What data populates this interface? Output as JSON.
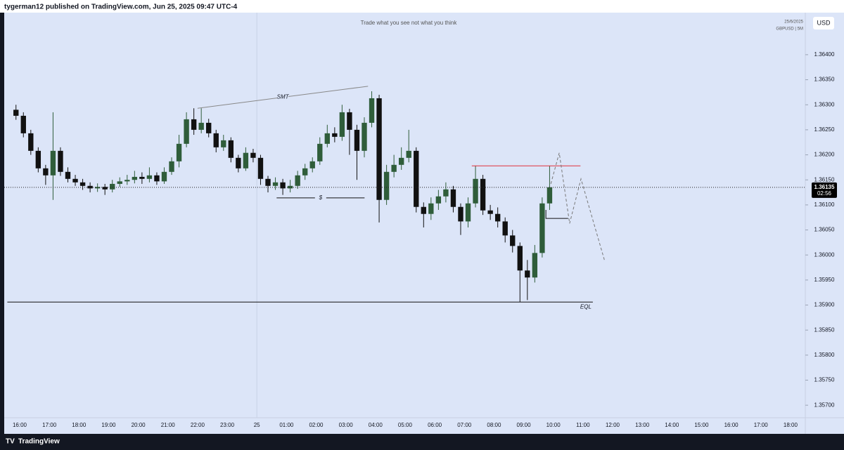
{
  "header": {
    "text": "tygerman12 published on TradingView.com, Jun 25, 2025 09:47 UTC-4"
  },
  "footer": {
    "brand": "TradingView"
  },
  "chart_data": {
    "type": "candlestick",
    "title": "Trade what you see not what you think",
    "date": "25/6/2025",
    "symbol": "GBPUSD | 5M",
    "currency": "USD",
    "up_color": "#2f5d3a",
    "down_color": "#111111",
    "ylim": [
      1.35675,
      1.36484
    ],
    "yticks": [
      {
        "value": 1.364,
        "label": "1.36400"
      },
      {
        "value": 1.3635,
        "label": "1.36350"
      },
      {
        "value": 1.363,
        "label": "1.36300"
      },
      {
        "value": 1.3625,
        "label": "1.36250"
      },
      {
        "value": 1.362,
        "label": "1.36200"
      },
      {
        "value": 1.3615,
        "label": "1.36150"
      },
      {
        "value": 1.361,
        "label": "1.36100"
      },
      {
        "value": 1.3605,
        "label": "1.36050"
      },
      {
        "value": 1.36,
        "label": "1.36000"
      },
      {
        "value": 1.3595,
        "label": "1.35950"
      },
      {
        "value": 1.359,
        "label": "1.35900"
      },
      {
        "value": 1.3585,
        "label": "1.35850"
      },
      {
        "value": 1.358,
        "label": "1.35800"
      },
      {
        "value": 1.3575,
        "label": "1.35750"
      },
      {
        "value": 1.357,
        "label": "1.35700"
      }
    ],
    "xticks": [
      "16:00",
      "17:00",
      "18:00",
      "19:00",
      "20:00",
      "21:00",
      "22:00",
      "23:00",
      {
        "value": "00:00",
        "label": "25"
      },
      "01:00",
      "02:00",
      "03:00",
      "04:00",
      "05:00",
      "06:00",
      "07:00",
      "08:00",
      "09:00",
      "10:00",
      "11:00",
      "12:00",
      "13:00",
      "14:00",
      "15:00",
      "16:00",
      "17:00",
      "18:00"
    ],
    "last_price": 1.36135,
    "countdown": "02:56",
    "candles": [
      {
        "t": "15:45",
        "o": 1.3629,
        "h": 1.363,
        "l": 1.3627,
        "c": 1.36278
      },
      {
        "t": "16:00",
        "o": 1.36278,
        "h": 1.36285,
        "l": 1.36235,
        "c": 1.36243
      },
      {
        "t": "16:15",
        "o": 1.36243,
        "h": 1.3625,
        "l": 1.362,
        "c": 1.36208
      },
      {
        "t": "16:30",
        "o": 1.36208,
        "h": 1.36215,
        "l": 1.36165,
        "c": 1.36173
      },
      {
        "t": "16:45",
        "o": 1.36173,
        "h": 1.3618,
        "l": 1.3614,
        "c": 1.36159
      },
      {
        "t": "17:00",
        "o": 1.36159,
        "h": 1.36285,
        "l": 1.3611,
        "c": 1.36208
      },
      {
        "t": "17:15",
        "o": 1.36208,
        "h": 1.36215,
        "l": 1.36158,
        "c": 1.36166
      },
      {
        "t": "17:30",
        "o": 1.36166,
        "h": 1.36175,
        "l": 1.36145,
        "c": 1.36152
      },
      {
        "t": "17:45",
        "o": 1.36152,
        "h": 1.3616,
        "l": 1.36138,
        "c": 1.36145
      },
      {
        "t": "18:00",
        "o": 1.36145,
        "h": 1.36152,
        "l": 1.3613,
        "c": 1.36138
      },
      {
        "t": "18:15",
        "o": 1.36138,
        "h": 1.36145,
        "l": 1.36125,
        "c": 1.36133
      },
      {
        "t": "18:30",
        "o": 1.36133,
        "h": 1.36143,
        "l": 1.36126,
        "c": 1.36136
      },
      {
        "t": "18:45",
        "o": 1.36136,
        "h": 1.36142,
        "l": 1.3612,
        "c": 1.36131
      },
      {
        "t": "19:00",
        "o": 1.36131,
        "h": 1.3615,
        "l": 1.36125,
        "c": 1.36142
      },
      {
        "t": "19:15",
        "o": 1.36142,
        "h": 1.36155,
        "l": 1.36136,
        "c": 1.36147
      },
      {
        "t": "19:30",
        "o": 1.36147,
        "h": 1.3616,
        "l": 1.3614,
        "c": 1.3615
      },
      {
        "t": "19:45",
        "o": 1.3615,
        "h": 1.36168,
        "l": 1.36143,
        "c": 1.36156
      },
      {
        "t": "20:00",
        "o": 1.36156,
        "h": 1.36165,
        "l": 1.36142,
        "c": 1.36152
      },
      {
        "t": "20:15",
        "o": 1.36152,
        "h": 1.36175,
        "l": 1.36145,
        "c": 1.36159
      },
      {
        "t": "20:30",
        "o": 1.36159,
        "h": 1.36165,
        "l": 1.3614,
        "c": 1.36147
      },
      {
        "t": "20:45",
        "o": 1.36147,
        "h": 1.36175,
        "l": 1.36142,
        "c": 1.36166
      },
      {
        "t": "21:00",
        "o": 1.36166,
        "h": 1.36195,
        "l": 1.3616,
        "c": 1.36187
      },
      {
        "t": "21:15",
        "o": 1.36187,
        "h": 1.3624,
        "l": 1.36175,
        "c": 1.36222
      },
      {
        "t": "21:30",
        "o": 1.36222,
        "h": 1.36285,
        "l": 1.36215,
        "c": 1.36271
      },
      {
        "t": "21:45",
        "o": 1.36271,
        "h": 1.36293,
        "l": 1.3624,
        "c": 1.3625
      },
      {
        "t": "22:00",
        "o": 1.3625,
        "h": 1.36293,
        "l": 1.36243,
        "c": 1.36264
      },
      {
        "t": "22:15",
        "o": 1.36264,
        "h": 1.36272,
        "l": 1.36235,
        "c": 1.36243
      },
      {
        "t": "22:30",
        "o": 1.36243,
        "h": 1.3625,
        "l": 1.36205,
        "c": 1.36215
      },
      {
        "t": "22:45",
        "o": 1.36215,
        "h": 1.3624,
        "l": 1.36208,
        "c": 1.36229
      },
      {
        "t": "23:00",
        "o": 1.36229,
        "h": 1.36235,
        "l": 1.36185,
        "c": 1.36194
      },
      {
        "t": "23:15",
        "o": 1.36194,
        "h": 1.362,
        "l": 1.36165,
        "c": 1.36173
      },
      {
        "t": "23:30",
        "o": 1.36173,
        "h": 1.36215,
        "l": 1.36168,
        "c": 1.36204
      },
      {
        "t": "23:45",
        "o": 1.36204,
        "h": 1.36212,
        "l": 1.36185,
        "c": 1.36194
      },
      {
        "t": "00:00",
        "o": 1.36194,
        "h": 1.362,
        "l": 1.3614,
        "c": 1.36152
      },
      {
        "t": "00:15",
        "o": 1.36152,
        "h": 1.36158,
        "l": 1.36125,
        "c": 1.36138
      },
      {
        "t": "00:30",
        "o": 1.36138,
        "h": 1.36155,
        "l": 1.3613,
        "c": 1.36145
      },
      {
        "t": "00:45",
        "o": 1.36145,
        "h": 1.36152,
        "l": 1.3612,
        "c": 1.36133
      },
      {
        "t": "01:00",
        "o": 1.36133,
        "h": 1.3615,
        "l": 1.36125,
        "c": 1.36138
      },
      {
        "t": "01:15",
        "o": 1.36138,
        "h": 1.36168,
        "l": 1.36132,
        "c": 1.36159
      },
      {
        "t": "01:30",
        "o": 1.36159,
        "h": 1.36182,
        "l": 1.3615,
        "c": 1.36173
      },
      {
        "t": "01:45",
        "o": 1.36173,
        "h": 1.36195,
        "l": 1.36165,
        "c": 1.36187
      },
      {
        "t": "02:00",
        "o": 1.36187,
        "h": 1.36235,
        "l": 1.3618,
        "c": 1.36222
      },
      {
        "t": "02:15",
        "o": 1.36222,
        "h": 1.3626,
        "l": 1.36215,
        "c": 1.36243
      },
      {
        "t": "02:30",
        "o": 1.36243,
        "h": 1.36255,
        "l": 1.36225,
        "c": 1.36236
      },
      {
        "t": "02:45",
        "o": 1.36236,
        "h": 1.363,
        "l": 1.36228,
        "c": 1.36285
      },
      {
        "t": "03:00",
        "o": 1.36285,
        "h": 1.36292,
        "l": 1.362,
        "c": 1.3625
      },
      {
        "t": "03:15",
        "o": 1.3625,
        "h": 1.3626,
        "l": 1.3615,
        "c": 1.36208
      },
      {
        "t": "03:30",
        "o": 1.36208,
        "h": 1.36275,
        "l": 1.36195,
        "c": 1.36264
      },
      {
        "t": "03:45",
        "o": 1.36264,
        "h": 1.36327,
        "l": 1.36255,
        "c": 1.36313
      },
      {
        "t": "04:00",
        "o": 1.36313,
        "h": 1.3632,
        "l": 1.36065,
        "c": 1.3611
      },
      {
        "t": "04:15",
        "o": 1.3611,
        "h": 1.3618,
        "l": 1.361,
        "c": 1.36166
      },
      {
        "t": "04:30",
        "o": 1.36166,
        "h": 1.362,
        "l": 1.36155,
        "c": 1.3618
      },
      {
        "t": "04:45",
        "o": 1.3618,
        "h": 1.36215,
        "l": 1.3617,
        "c": 1.36194
      },
      {
        "t": "05:00",
        "o": 1.36194,
        "h": 1.3625,
        "l": 1.36185,
        "c": 1.36208
      },
      {
        "t": "05:15",
        "o": 1.36208,
        "h": 1.36215,
        "l": 1.36085,
        "c": 1.36096
      },
      {
        "t": "05:30",
        "o": 1.36096,
        "h": 1.36105,
        "l": 1.36055,
        "c": 1.36082
      },
      {
        "t": "05:45",
        "o": 1.36082,
        "h": 1.36115,
        "l": 1.3607,
        "c": 1.36103
      },
      {
        "t": "06:00",
        "o": 1.36103,
        "h": 1.3613,
        "l": 1.3609,
        "c": 1.36117
      },
      {
        "t": "06:15",
        "o": 1.36117,
        "h": 1.36145,
        "l": 1.36105,
        "c": 1.36131
      },
      {
        "t": "06:30",
        "o": 1.36131,
        "h": 1.36138,
        "l": 1.36085,
        "c": 1.36096
      },
      {
        "t": "06:45",
        "o": 1.36096,
        "h": 1.36103,
        "l": 1.3604,
        "c": 1.36067
      },
      {
        "t": "07:00",
        "o": 1.36067,
        "h": 1.36115,
        "l": 1.36055,
        "c": 1.36103
      },
      {
        "t": "07:15",
        "o": 1.36103,
        "h": 1.36178,
        "l": 1.36095,
        "c": 1.36152
      },
      {
        "t": "07:30",
        "o": 1.36152,
        "h": 1.3616,
        "l": 1.3608,
        "c": 1.36089
      },
      {
        "t": "07:45",
        "o": 1.36089,
        "h": 1.361,
        "l": 1.3607,
        "c": 1.36082
      },
      {
        "t": "08:00",
        "o": 1.36082,
        "h": 1.36095,
        "l": 1.36055,
        "c": 1.36067
      },
      {
        "t": "08:15",
        "o": 1.36067,
        "h": 1.36075,
        "l": 1.36025,
        "c": 1.36039
      },
      {
        "t": "08:30",
        "o": 1.36039,
        "h": 1.3605,
        "l": 1.36005,
        "c": 1.36018
      },
      {
        "t": "08:45",
        "o": 1.36018,
        "h": 1.36025,
        "l": 1.35906,
        "c": 1.35969
      },
      {
        "t": "09:00",
        "o": 1.35969,
        "h": 1.3599,
        "l": 1.3591,
        "c": 1.35955
      },
      {
        "t": "09:15",
        "o": 1.35955,
        "h": 1.3602,
        "l": 1.35945,
        "c": 1.36004
      },
      {
        "t": "09:30",
        "o": 1.36004,
        "h": 1.36115,
        "l": 1.35995,
        "c": 1.36103
      },
      {
        "t": "09:45",
        "o": 1.36103,
        "h": 1.36178,
        "l": 1.3609,
        "c": 1.36135
      }
    ],
    "drawings": [
      {
        "label": "SMT",
        "color": "#888888",
        "points": [
          {
            "t": "22:00",
            "p": 1.36293
          },
          {
            "t": "03:45",
            "p": 1.36337
          }
        ]
      },
      {
        "label": "$",
        "color": "#111111",
        "points": [
          {
            "t": "00:40",
            "p": 1.36114
          },
          {
            "t": "03:38",
            "p": 1.36114
          }
        ]
      },
      {
        "label": "EQL",
        "color": "#111111",
        "points": [
          {
            "t": "15:35",
            "p": 1.35906
          },
          {
            "t": "11:20",
            "p": 1.35906
          }
        ]
      },
      {
        "color": "#e0303a",
        "points": [
          {
            "t": "07:15",
            "p": 1.36178
          },
          {
            "t": "10:55",
            "p": 1.36178
          }
        ]
      },
      {
        "color": "#111111",
        "points": [
          {
            "t": "09:45",
            "p": 1.3609
          },
          {
            "t": "09:45",
            "p": 1.36073
          },
          {
            "t": "10:30",
            "p": 1.36073
          }
        ]
      },
      {
        "color": "#777777",
        "dashed": true,
        "points": [
          {
            "t": "09:55",
            "p": 1.36142
          },
          {
            "t": "10:12",
            "p": 1.36204
          },
          {
            "t": "10:33",
            "p": 1.36063
          },
          {
            "t": "10:56",
            "p": 1.36152
          },
          {
            "t": "11:44",
            "p": 1.35988
          }
        ]
      }
    ]
  }
}
